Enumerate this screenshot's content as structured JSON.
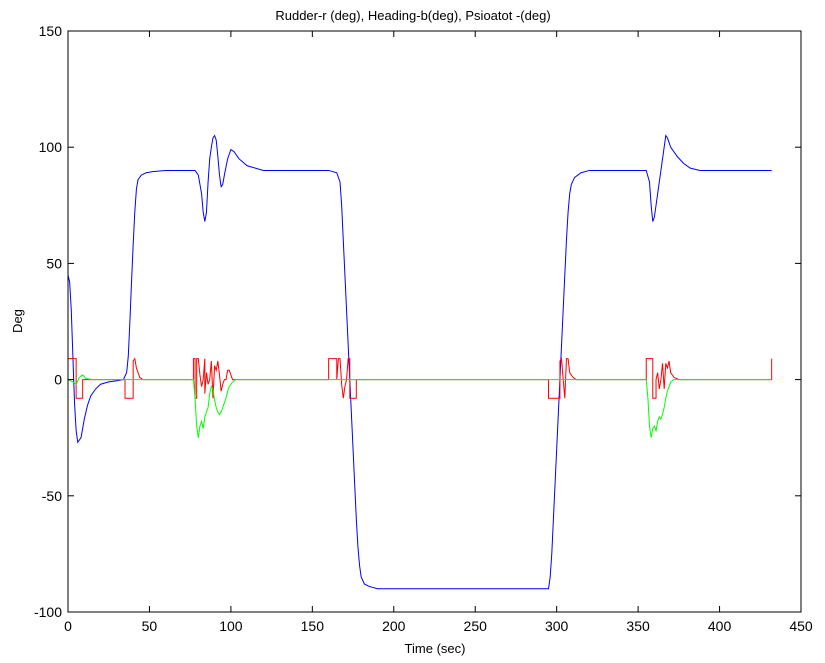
{
  "chart_data": {
    "type": "line",
    "title": "Rudder-r (deg), Heading-b(deg), Psioatot -(deg)",
    "xlabel": "Time (sec)",
    "ylabel": "Deg",
    "xlim": [
      0,
      450
    ],
    "ylim": [
      -100,
      150
    ],
    "xticks": [
      0,
      50,
      100,
      150,
      200,
      250,
      300,
      350,
      400,
      450
    ],
    "yticks": [
      -100,
      -50,
      0,
      50,
      100,
      150
    ],
    "grid": false,
    "legend": "none",
    "series": [
      {
        "color": "#0000ff",
        "points": [
          [
            0,
            45
          ],
          [
            1,
            42
          ],
          [
            2,
            30
          ],
          [
            3,
            10
          ],
          [
            4,
            -10
          ],
          [
            5,
            -22
          ],
          [
            6,
            -27
          ],
          [
            8,
            -25
          ],
          [
            10,
            -17
          ],
          [
            12,
            -11
          ],
          [
            14,
            -7
          ],
          [
            17,
            -4
          ],
          [
            20,
            -2
          ],
          [
            25,
            -1
          ],
          [
            30,
            -0.5
          ],
          [
            34,
            0
          ],
          [
            36,
            3
          ],
          [
            37,
            10
          ],
          [
            38,
            25
          ],
          [
            39,
            42
          ],
          [
            40,
            58
          ],
          [
            41,
            72
          ],
          [
            42,
            82
          ],
          [
            43,
            86
          ],
          [
            45,
            88
          ],
          [
            48,
            89
          ],
          [
            52,
            89.5
          ],
          [
            60,
            90
          ],
          [
            70,
            90
          ],
          [
            78,
            90
          ],
          [
            80,
            88
          ],
          [
            82,
            80
          ],
          [
            83,
            72
          ],
          [
            84,
            68
          ],
          [
            85,
            72
          ],
          [
            86,
            85
          ],
          [
            87,
            95
          ],
          [
            88,
            100
          ],
          [
            89,
            104
          ],
          [
            90,
            105
          ],
          [
            91,
            103
          ],
          [
            92,
            96
          ],
          [
            93,
            88
          ],
          [
            94,
            83
          ],
          [
            95,
            84
          ],
          [
            96,
            88
          ],
          [
            98,
            95
          ],
          [
            100,
            99
          ],
          [
            102,
            98
          ],
          [
            105,
            95
          ],
          [
            110,
            92
          ],
          [
            115,
            91
          ],
          [
            120,
            90
          ],
          [
            130,
            90
          ],
          [
            140,
            90
          ],
          [
            150,
            90
          ],
          [
            160,
            90
          ],
          [
            165,
            89
          ],
          [
            167,
            85
          ],
          [
            168,
            75
          ],
          [
            169,
            60
          ],
          [
            170,
            45
          ],
          [
            171,
            30
          ],
          [
            172,
            15
          ],
          [
            173,
            0
          ],
          [
            174,
            -15
          ],
          [
            175,
            -30
          ],
          [
            176,
            -45
          ],
          [
            177,
            -60
          ],
          [
            178,
            -72
          ],
          [
            179,
            -80
          ],
          [
            180,
            -85
          ],
          [
            182,
            -88
          ],
          [
            185,
            -89
          ],
          [
            190,
            -90
          ],
          [
            200,
            -90
          ],
          [
            250,
            -90
          ],
          [
            290,
            -90
          ],
          [
            295,
            -90
          ],
          [
            296,
            -85
          ],
          [
            297,
            -75
          ],
          [
            298,
            -60
          ],
          [
            299,
            -45
          ],
          [
            300,
            -30
          ],
          [
            301,
            -15
          ],
          [
            302,
            0
          ],
          [
            303,
            15
          ],
          [
            304,
            30
          ],
          [
            305,
            45
          ],
          [
            306,
            60
          ],
          [
            307,
            72
          ],
          [
            308,
            80
          ],
          [
            309,
            84
          ],
          [
            311,
            87
          ],
          [
            315,
            89
          ],
          [
            320,
            90
          ],
          [
            340,
            90
          ],
          [
            355,
            90
          ],
          [
            357,
            85
          ],
          [
            358,
            75
          ],
          [
            359,
            68
          ],
          [
            360,
            70
          ],
          [
            362,
            80
          ],
          [
            364,
            90
          ],
          [
            366,
            100
          ],
          [
            367,
            105
          ],
          [
            368,
            104
          ],
          [
            370,
            100
          ],
          [
            374,
            96
          ],
          [
            378,
            93
          ],
          [
            382,
            91
          ],
          [
            388,
            90
          ],
          [
            400,
            90
          ],
          [
            432,
            90
          ]
        ]
      },
      {
        "color": "#ff0000",
        "points": [
          [
            0,
            0
          ],
          [
            0,
            9
          ],
          [
            5,
            9
          ],
          [
            5,
            -8
          ],
          [
            9,
            -8
          ],
          [
            9,
            0
          ],
          [
            35,
            0
          ],
          [
            35,
            -8
          ],
          [
            40,
            -8
          ],
          [
            40,
            8
          ],
          [
            41,
            9
          ],
          [
            42,
            5
          ],
          [
            44,
            1
          ],
          [
            46,
            0
          ],
          [
            77,
            0
          ],
          [
            77,
            9
          ],
          [
            78,
            9
          ],
          [
            78,
            -8
          ],
          [
            79,
            -8
          ],
          [
            79,
            9
          ],
          [
            80,
            9
          ],
          [
            81,
            2
          ],
          [
            82,
            -3
          ],
          [
            83,
            0
          ],
          [
            84,
            9
          ],
          [
            84,
            -6
          ],
          [
            85,
            3
          ],
          [
            86,
            -2
          ],
          [
            87,
            0
          ],
          [
            88,
            8
          ],
          [
            89,
            -8
          ],
          [
            90,
            6
          ],
          [
            91,
            4
          ],
          [
            92,
            8
          ],
          [
            93,
            2
          ],
          [
            94,
            -5
          ],
          [
            95,
            -2
          ],
          [
            96,
            0
          ],
          [
            97,
            0
          ],
          [
            98,
            4
          ],
          [
            99,
            4
          ],
          [
            100,
            2
          ],
          [
            101,
            0
          ],
          [
            103,
            0
          ],
          [
            160,
            0
          ],
          [
            160,
            9
          ],
          [
            165,
            9
          ],
          [
            165,
            0
          ],
          [
            166,
            9
          ],
          [
            167,
            9
          ],
          [
            168,
            -2
          ],
          [
            169,
            -8
          ],
          [
            170,
            -3
          ],
          [
            171,
            0
          ],
          [
            172,
            9
          ],
          [
            173,
            9
          ],
          [
            173,
            -8
          ],
          [
            177,
            -8
          ],
          [
            177,
            0
          ],
          [
            295,
            0
          ],
          [
            295,
            -8
          ],
          [
            302,
            -8
          ],
          [
            302,
            8
          ],
          [
            303,
            9
          ],
          [
            304,
            0
          ],
          [
            305,
            -8
          ],
          [
            306,
            9
          ],
          [
            307,
            9
          ],
          [
            308,
            3
          ],
          [
            310,
            1
          ],
          [
            312,
            0
          ],
          [
            355,
            0
          ],
          [
            355,
            9
          ],
          [
            359,
            9
          ],
          [
            359,
            -8
          ],
          [
            361,
            -8
          ],
          [
            361,
            0
          ],
          [
            362,
            3
          ],
          [
            363,
            -4
          ],
          [
            364,
            0
          ],
          [
            365,
            7
          ],
          [
            366,
            -4
          ],
          [
            367,
            7
          ],
          [
            368,
            5
          ],
          [
            369,
            8
          ],
          [
            370,
            3
          ],
          [
            372,
            1
          ],
          [
            375,
            0
          ],
          [
            432,
            0
          ],
          [
            432,
            9
          ]
        ]
      },
      {
        "color": "#00ff00",
        "points": [
          [
            0,
            0
          ],
          [
            3,
            -1
          ],
          [
            5,
            -2
          ],
          [
            7,
            1
          ],
          [
            9,
            2
          ],
          [
            11,
            0.5
          ],
          [
            15,
            0
          ],
          [
            77,
            0
          ],
          [
            78,
            -8
          ],
          [
            79,
            -20
          ],
          [
            80,
            -25
          ],
          [
            81,
            -20
          ],
          [
            82,
            -18
          ],
          [
            83,
            -21
          ],
          [
            84,
            -16
          ],
          [
            85,
            -14
          ],
          [
            86,
            -12
          ],
          [
            87,
            -6
          ],
          [
            88,
            -3
          ],
          [
            89,
            -4
          ],
          [
            90,
            -9
          ],
          [
            91,
            -12
          ],
          [
            92,
            -14
          ],
          [
            93,
            -15
          ],
          [
            94,
            -14
          ],
          [
            95,
            -12
          ],
          [
            96,
            -10
          ],
          [
            97,
            -8
          ],
          [
            98,
            -5
          ],
          [
            99,
            -3
          ],
          [
            100,
            -2
          ],
          [
            101,
            -1
          ],
          [
            103,
            0
          ],
          [
            160,
            0
          ],
          [
            170,
            0
          ],
          [
            175,
            0
          ],
          [
            300,
            0
          ],
          [
            355,
            0
          ],
          [
            356,
            -8
          ],
          [
            357,
            -20
          ],
          [
            358,
            -25
          ],
          [
            359,
            -21
          ],
          [
            360,
            -20
          ],
          [
            361,
            -22
          ],
          [
            362,
            -18
          ],
          [
            363,
            -16
          ],
          [
            364,
            -17
          ],
          [
            365,
            -15
          ],
          [
            366,
            -12
          ],
          [
            367,
            -8
          ],
          [
            368,
            -5
          ],
          [
            369,
            -3
          ],
          [
            370,
            -1
          ],
          [
            372,
            0
          ],
          [
            432,
            0
          ]
        ]
      }
    ]
  }
}
